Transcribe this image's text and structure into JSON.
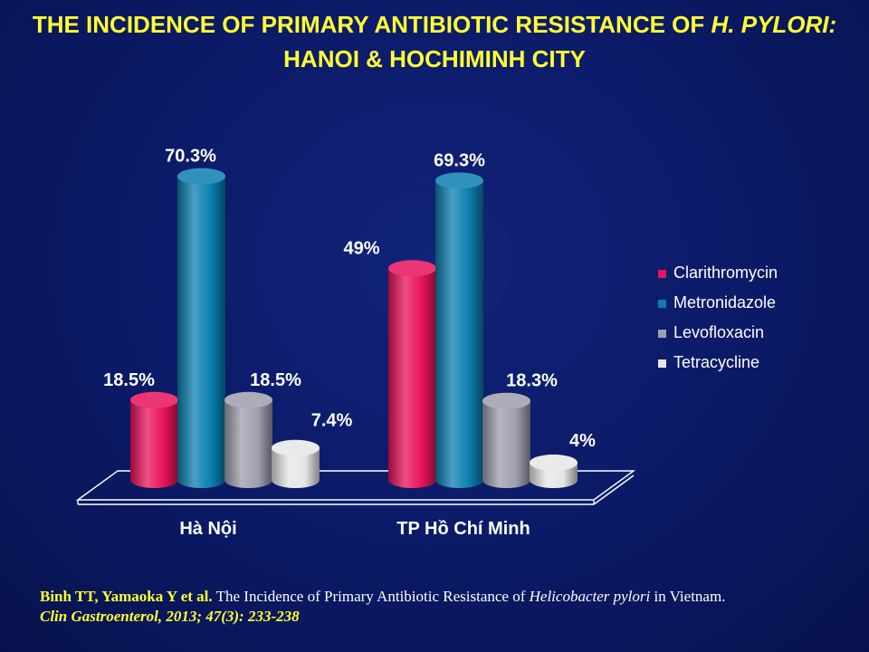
{
  "title": {
    "line1_prefix": "THE INCIDENCE OF PRIMARY ANTIBIOTIC RESISTANCE OF ",
    "line1_italic": "H. PYLORI:",
    "line2": "HANOI & HOCHIMINH CITY"
  },
  "colors": {
    "Clarithromycin": "#e8135a",
    "Metronidazole": "#0b7fb0",
    "Levofloxacin": "#9e9eae",
    "Tetracycline": "#e6e6e6"
  },
  "chart_data": {
    "type": "bar",
    "categories": [
      "Hà Nội",
      "TP Hồ Chí Minh"
    ],
    "series": [
      {
        "name": "Clarithromycin",
        "values": [
          18.5,
          49
        ],
        "labels": [
          "18.5%",
          "49%"
        ]
      },
      {
        "name": "Metronidazole",
        "values": [
          70.3,
          69.3
        ],
        "labels": [
          "70.3%",
          "69.3%"
        ]
      },
      {
        "name": "Levofloxacin",
        "values": [
          18.5,
          18.3
        ],
        "labels": [
          "18.5%",
          "18.3%"
        ]
      },
      {
        "name": "Tetracycline",
        "values": [
          7.4,
          4
        ],
        "labels": [
          "7.4%",
          "4%"
        ]
      }
    ],
    "ylim": [
      0,
      75
    ],
    "grid": false,
    "legend_position": "right",
    "style": "3d-cylinder"
  },
  "citation": {
    "authors": "Binh TT, Yamaoka Y et al.",
    "text_before": " The Incidence of Primary Antibiotic Resistance of ",
    "italic": "Helicobacter pylori",
    "text_after": " in Vietnam.",
    "journal": "Clin Gastroenterol, 2013; 47(3): 233-238"
  }
}
